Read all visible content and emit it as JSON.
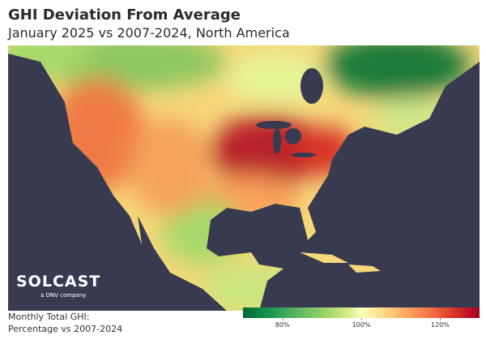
{
  "header": {
    "title": "GHI Deviation From Average",
    "subtitle": "January 2025 vs 2007-2024, North America"
  },
  "logo": {
    "name": "SOLCAST",
    "tagline": "a DNV company"
  },
  "legend": {
    "label_line1": "Monthly Total GHI:",
    "label_line2": "Percentage vs 2007-2024",
    "range": [
      70,
      130
    ],
    "ticks": [
      {
        "value": 80,
        "label": "80%"
      },
      {
        "value": 100,
        "label": "100%"
      },
      {
        "value": 120,
        "label": "120%"
      }
    ],
    "colors": [
      "#006837",
      "#66bd63",
      "#ffffbf",
      "#fdae61",
      "#a50026"
    ]
  },
  "colors": {
    "ocean": "#383b50"
  }
}
